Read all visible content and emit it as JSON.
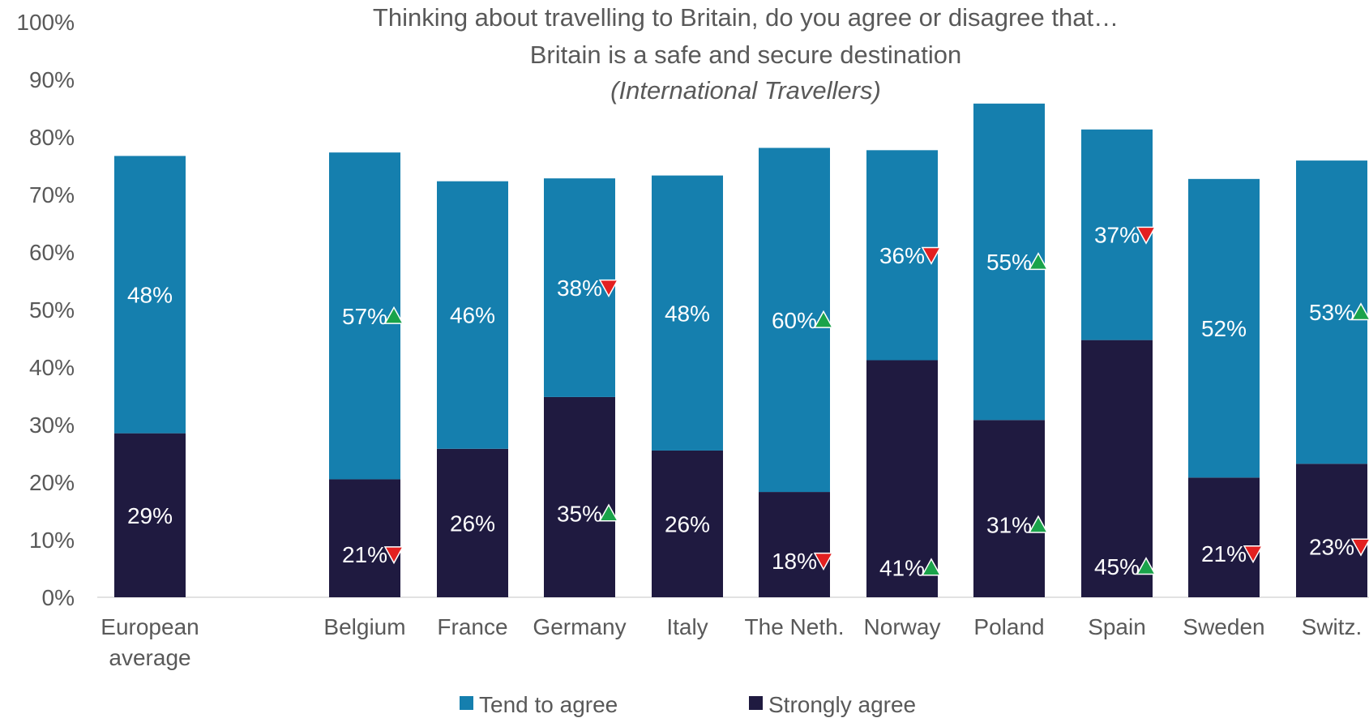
{
  "chart_data": {
    "type": "bar",
    "stacked": true,
    "title": "Thinking about travelling to Britain, do you agree or disagree that…",
    "subtitle": "Britain is a safe and secure destination",
    "note": "(International Travellers)",
    "categories": [
      [
        "European",
        "average"
      ],
      [
        "Belgium"
      ],
      [
        "France"
      ],
      [
        "Germany"
      ],
      [
        "Italy"
      ],
      [
        "The Neth."
      ],
      [
        "Norway"
      ],
      [
        "Poland"
      ],
      [
        "Spain"
      ],
      [
        "Sweden"
      ],
      [
        "Switz."
      ]
    ],
    "ylim": [
      0,
      100
    ],
    "yticks": [
      "0%",
      "10%",
      "20%",
      "30%",
      "40%",
      "50%",
      "60%",
      "70%",
      "80%",
      "90%",
      "100%"
    ],
    "grid": false,
    "legend_position": "bottom",
    "series": [
      {
        "name": "Strongly agree",
        "color": "#1f1a40",
        "values": [
          28.5,
          20.5,
          25.8,
          34.8,
          25.5,
          18.3,
          41.2,
          30.8,
          44.7,
          20.8,
          23.2
        ],
        "labels": [
          "29%",
          "21%",
          "26%",
          "35%",
          "26%",
          "18%",
          "41%",
          "31%",
          "45%",
          "21%",
          "23%"
        ],
        "markers": [
          null,
          "down",
          null,
          "up",
          null,
          "down",
          "up",
          "up",
          "up",
          "down",
          "down"
        ]
      },
      {
        "name": "Tend to agree",
        "color": "#157fae",
        "values": [
          48.2,
          56.8,
          46.5,
          38.0,
          47.8,
          59.8,
          36.5,
          55.0,
          36.6,
          51.9,
          52.7
        ],
        "labels": [
          "48%",
          "57%",
          "46%",
          "38%",
          "48%",
          "60%",
          "36%",
          "55%",
          "37%",
          "52%",
          "53%"
        ],
        "markers": [
          null,
          "up",
          null,
          "down",
          null,
          "up",
          "down",
          "up",
          "down",
          null,
          "up"
        ]
      }
    ],
    "legend": [
      "Tend to agree",
      "Strongly agree"
    ],
    "marker_colors": {
      "up": "#1aa34a",
      "down": "#e32020"
    }
  }
}
